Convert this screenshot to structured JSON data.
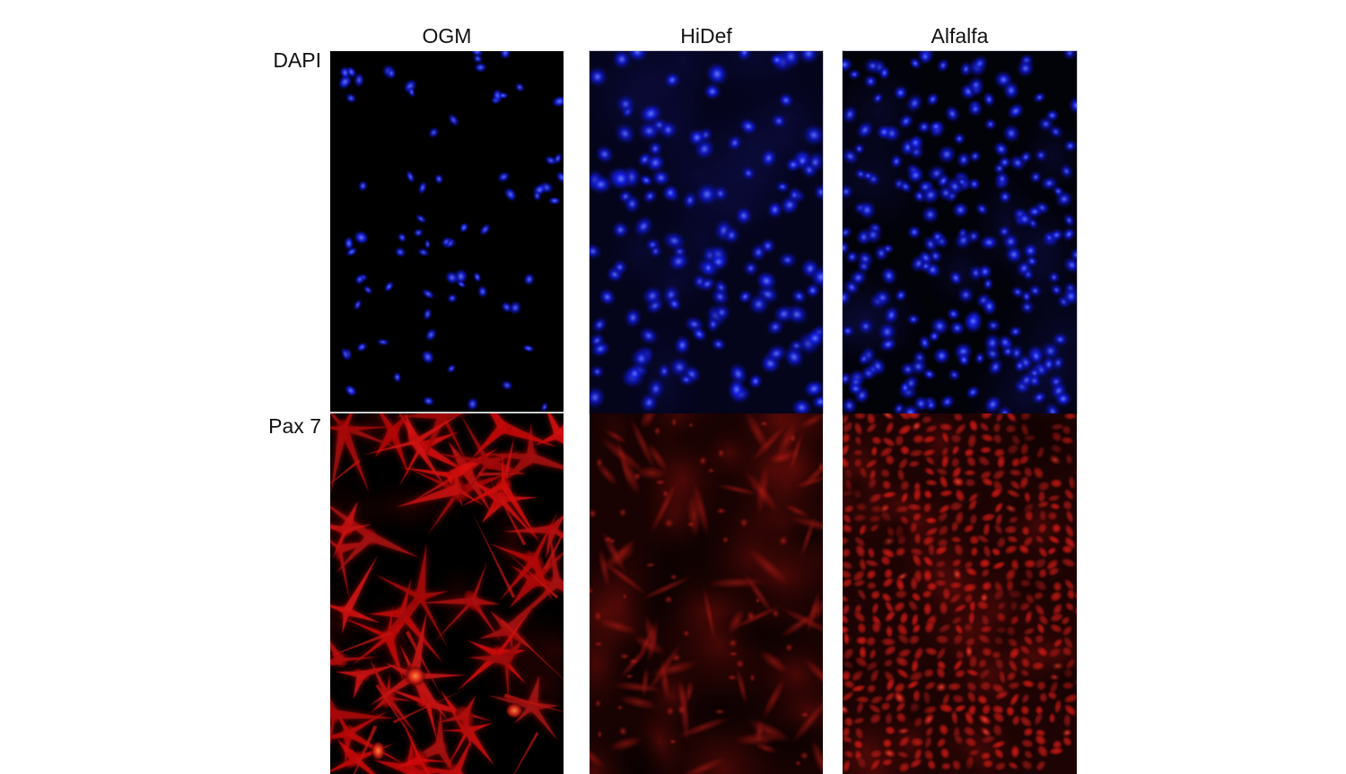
{
  "figure": {
    "columns": [
      {
        "label": "OGM"
      },
      {
        "label": "HiDef"
      },
      {
        "label": "Alfalfa"
      }
    ],
    "rows": [
      {
        "label": "DAPI",
        "stain_color": "#2b3cf0"
      },
      {
        "label": "Pax 7",
        "stain_color": "#c01414"
      }
    ],
    "colors": {
      "page_background": "#ffffff",
      "label_text": "#121212",
      "dapi_blue_core": "#647fff",
      "dapi_blue_mid": "#1520d0",
      "pax7_red_bright": "#d01616",
      "pax7_red_dim": "#6e0c0c",
      "panel_black": "#000000"
    },
    "panels": [
      {
        "key": "ogm-dapi",
        "column_label": "OGM",
        "row_label": "DAPI",
        "pattern": "nuclei",
        "density": "sparse",
        "seed": 11,
        "count": 76,
        "appearance": "sparse bright blue oval nuclei on black"
      },
      {
        "key": "hidef-dapi",
        "column_label": "HiDef",
        "row_label": "DAPI",
        "pattern": "nuclei",
        "density": "medium",
        "seed": 27,
        "count": 165,
        "appearance": "crowded soft round blue nuclei with navy haze, darker patch upper right"
      },
      {
        "key": "alfalfa-dapi",
        "column_label": "Alfalfa",
        "row_label": "DAPI",
        "pattern": "nuclei",
        "density": "dense",
        "seed": 39,
        "count": 260,
        "appearance": "very dense round blue nuclei, darker top-right corner"
      },
      {
        "key": "ogm-pax7",
        "column_label": "OGM",
        "row_label": "Pax 7",
        "pattern": "spindle",
        "density": "high-contrast",
        "seed": 52,
        "count": 46,
        "appearance": "bright red elongated spindle and stellate cells with black gaps"
      },
      {
        "key": "hidef-pax7",
        "column_label": "HiDef",
        "row_label": "Pax 7",
        "pattern": "diffuse",
        "density": "blurry",
        "seed": 68,
        "count": 72,
        "appearance": "dim diffuse red field with soft elongated brighter streaks"
      },
      {
        "key": "alfalfa-pax7",
        "column_label": "Alfalfa",
        "row_label": "Pax 7",
        "pattern": "cobblestone",
        "density": "confluent",
        "seed": 81,
        "count": 540,
        "appearance": "confluent cobblestone sheet of red oval cells with dark borders"
      }
    ]
  }
}
